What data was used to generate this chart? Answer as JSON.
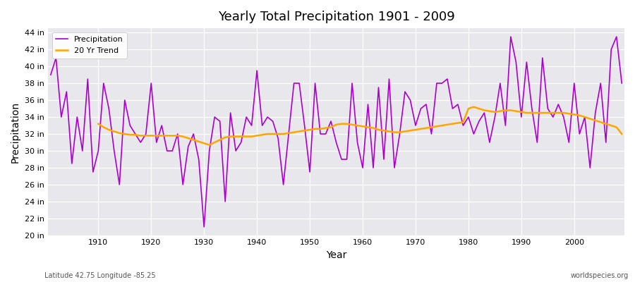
{
  "title": "Yearly Total Precipitation 1901 - 2009",
  "xlabel": "Year",
  "ylabel": "Precipitation",
  "lat_lon_label": "Latitude 42.75 Longitude -85.25",
  "source_label": "worldspecies.org",
  "precipitation_color": "#AA00CC",
  "trend_color": "#FFA500",
  "bg_color": "#FFFFFF",
  "plot_bg_color": "#E8E8EC",
  "grid_color": "#FFFFFF",
  "ylim": [
    20,
    44.5
  ],
  "yticks": [
    20,
    22,
    24,
    26,
    28,
    30,
    32,
    34,
    36,
    38,
    40,
    42,
    44
  ],
  "years": [
    1901,
    1902,
    1903,
    1904,
    1905,
    1906,
    1907,
    1908,
    1909,
    1910,
    1911,
    1912,
    1913,
    1914,
    1915,
    1916,
    1917,
    1918,
    1919,
    1920,
    1921,
    1922,
    1923,
    1924,
    1925,
    1926,
    1927,
    1928,
    1929,
    1930,
    1931,
    1932,
    1933,
    1934,
    1935,
    1936,
    1937,
    1938,
    1939,
    1940,
    1941,
    1942,
    1943,
    1944,
    1945,
    1946,
    1947,
    1948,
    1949,
    1950,
    1951,
    1952,
    1953,
    1954,
    1955,
    1956,
    1957,
    1958,
    1959,
    1960,
    1961,
    1962,
    1963,
    1964,
    1965,
    1966,
    1967,
    1968,
    1969,
    1970,
    1971,
    1972,
    1973,
    1974,
    1975,
    1976,
    1977,
    1978,
    1979,
    1980,
    1981,
    1982,
    1983,
    1984,
    1985,
    1986,
    1987,
    1988,
    1989,
    1990,
    1991,
    1992,
    1993,
    1994,
    1995,
    1996,
    1997,
    1998,
    1999,
    2000,
    2001,
    2002,
    2003,
    2004,
    2005,
    2006,
    2007,
    2008,
    2009
  ],
  "precip": [
    39.0,
    41.0,
    34.0,
    37.0,
    28.5,
    34.0,
    30.0,
    38.5,
    27.5,
    30.0,
    38.0,
    35.0,
    30.0,
    26.0,
    36.0,
    33.0,
    32.0,
    31.0,
    32.0,
    38.0,
    31.0,
    33.0,
    30.0,
    30.0,
    32.0,
    26.0,
    30.5,
    32.0,
    29.0,
    21.0,
    30.0,
    34.0,
    33.5,
    24.0,
    34.5,
    30.0,
    31.0,
    34.0,
    33.0,
    39.5,
    33.0,
    34.0,
    33.5,
    31.5,
    26.0,
    32.0,
    38.0,
    38.0,
    33.0,
    27.5,
    38.0,
    32.0,
    32.0,
    33.5,
    31.0,
    29.0,
    29.0,
    38.0,
    31.0,
    28.0,
    35.5,
    28.0,
    37.5,
    29.0,
    38.5,
    28.0,
    32.0,
    37.0,
    36.0,
    33.0,
    35.0,
    35.5,
    32.0,
    38.0,
    38.0,
    38.5,
    35.0,
    35.5,
    33.0,
    34.0,
    32.0,
    33.5,
    34.5,
    31.0,
    34.0,
    38.0,
    33.0,
    43.5,
    40.5,
    34.0,
    40.5,
    35.0,
    31.0,
    41.0,
    35.0,
    34.0,
    35.5,
    34.0,
    31.0,
    38.0,
    32.0,
    34.0,
    28.0,
    34.5,
    38.0,
    31.0,
    42.0,
    43.5,
    38.0
  ],
  "trend_years": [
    1910,
    1911,
    1912,
    1913,
    1914,
    1915,
    1916,
    1917,
    1918,
    1919,
    1920,
    1921,
    1922,
    1923,
    1924,
    1925,
    1926,
    1927,
    1928,
    1929,
    1930,
    1931,
    1932,
    1933,
    1934,
    1935,
    1936,
    1937,
    1938,
    1939,
    1940,
    1941,
    1942,
    1943,
    1944,
    1945,
    1946,
    1947,
    1948,
    1949,
    1950,
    1951,
    1952,
    1953,
    1954,
    1955,
    1956,
    1957,
    1958,
    1959,
    1960,
    1961,
    1962,
    1963,
    1964,
    1965,
    1966,
    1967,
    1968,
    1969,
    1970,
    1971,
    1972,
    1973,
    1974,
    1975,
    1976,
    1977,
    1978,
    1979,
    1980,
    1981,
    1982,
    1983,
    1984,
    1985,
    1986,
    1987,
    1988,
    1989,
    1990,
    1991,
    1992,
    1993,
    1994,
    1995,
    1996,
    1997,
    1998,
    1999,
    2000,
    2001,
    2002,
    2003,
    2004,
    2005,
    2006,
    2007,
    2008,
    2009
  ],
  "trend": [
    33.2,
    32.8,
    32.5,
    32.3,
    32.1,
    32.0,
    31.9,
    31.9,
    31.8,
    31.8,
    31.8,
    31.8,
    31.8,
    31.8,
    31.8,
    31.8,
    31.7,
    31.5,
    31.3,
    31.1,
    30.9,
    30.7,
    31.0,
    31.3,
    31.6,
    31.7,
    31.7,
    31.7,
    31.7,
    31.7,
    31.8,
    31.9,
    32.0,
    32.0,
    32.0,
    32.0,
    32.1,
    32.2,
    32.3,
    32.4,
    32.5,
    32.6,
    32.6,
    32.7,
    32.8,
    33.1,
    33.2,
    33.2,
    33.1,
    33.0,
    32.9,
    32.8,
    32.7,
    32.5,
    32.4,
    32.3,
    32.2,
    32.2,
    32.3,
    32.4,
    32.5,
    32.6,
    32.7,
    32.8,
    32.9,
    33.0,
    33.1,
    33.2,
    33.3,
    33.4,
    35.0,
    35.2,
    35.0,
    34.8,
    34.7,
    34.6,
    34.7,
    34.8,
    34.8,
    34.7,
    34.6,
    34.5,
    34.5,
    34.5,
    34.5,
    34.5,
    34.5,
    34.5,
    34.5,
    34.4,
    34.3,
    34.2,
    34.0,
    33.8,
    33.6,
    33.4,
    33.2,
    33.0,
    32.8,
    32.0
  ]
}
